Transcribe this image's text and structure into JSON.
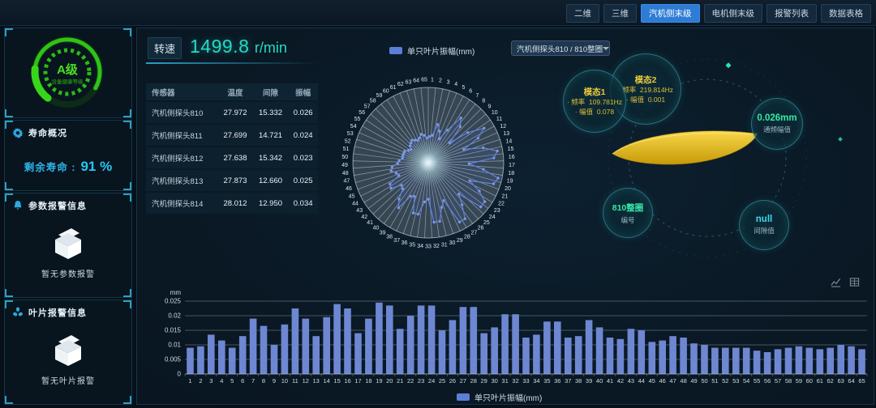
{
  "topbar": {
    "tabs": [
      {
        "label": "二维",
        "active": false
      },
      {
        "label": "三维",
        "active": false
      },
      {
        "label": "汽机侧末级",
        "active": true
      },
      {
        "label": "电机侧末级",
        "active": false
      },
      {
        "label": "报警列表",
        "active": false
      },
      {
        "label": "数据表格",
        "active": false
      }
    ]
  },
  "sidebar": {
    "health": {
      "grade": "A级",
      "caption": "设备健康等级"
    },
    "life": {
      "title": "寿命概况",
      "label": "剩余寿命 :",
      "value": "91 %"
    },
    "param_alarm": {
      "title": "参数报警信息",
      "empty": "暂无参数报警"
    },
    "blade_alarm": {
      "title": "叶片报警信息",
      "empty": "暂无叶片报警"
    }
  },
  "main": {
    "speed": {
      "label": "转速",
      "value": "1499.8",
      "unit": "r/min"
    },
    "selector": {
      "value": "汽机侧探头810 / 810整圈"
    },
    "polar_legend": "单只叶片振幅(mm)",
    "bottom_legend": "单只叶片振幅(mm)"
  },
  "table": {
    "headers": [
      "传感器",
      "温度",
      "间隙",
      "振幅"
    ],
    "rows": [
      [
        "汽机侧探头810",
        "27.972",
        "15.332",
        "0.026"
      ],
      [
        "汽机侧探头811",
        "27.699",
        "14.721",
        "0.024"
      ],
      [
        "汽机侧探头812",
        "27.638",
        "15.342",
        "0.023"
      ],
      [
        "汽机侧探头813",
        "27.873",
        "12.660",
        "0.025"
      ],
      [
        "汽机侧探头814",
        "28.012",
        "12.950",
        "0.034"
      ]
    ]
  },
  "blade_panel": {
    "mode1": {
      "title": "模态1",
      "freq_label": "· 频率",
      "freq": "109.781Hz",
      "amp_label": "· 幅值",
      "amp": "0.078"
    },
    "mode2": {
      "title": "模态2",
      "freq_label": "· 频率",
      "freq": "219.814Hz",
      "amp_label": "· 幅值",
      "amp": "0.001"
    },
    "amplitude": {
      "value": "0.026mm",
      "label": "通频幅值"
    },
    "ring": {
      "value": "810整圈",
      "label": "编号"
    },
    "gap": {
      "value": "null",
      "label": "间隙值"
    }
  },
  "chart_data": {
    "type": "bar",
    "title": "单只叶片振幅(mm)",
    "ylabel": "mm",
    "ylim": [
      0,
      0.025
    ],
    "yticks": [
      0,
      0.005,
      0.01,
      0.015,
      0.02,
      0.025
    ],
    "grid": true,
    "legend_position": "bottom",
    "views": [
      "bar",
      "polar-line"
    ],
    "bar_color": "#6e87d2",
    "line_color": "#6282dd",
    "categories": [
      1,
      2,
      3,
      4,
      5,
      6,
      7,
      8,
      9,
      10,
      11,
      12,
      13,
      14,
      15,
      16,
      17,
      18,
      19,
      20,
      21,
      22,
      23,
      24,
      25,
      26,
      27,
      28,
      29,
      30,
      31,
      32,
      33,
      34,
      35,
      36,
      37,
      38,
      39,
      40,
      41,
      42,
      43,
      44,
      45,
      46,
      47,
      48,
      49,
      50,
      51,
      52,
      53,
      54,
      55,
      56,
      57,
      58,
      59,
      60,
      61,
      62,
      63,
      64,
      65
    ],
    "values": [
      0.009,
      0.0095,
      0.0135,
      0.0115,
      0.009,
      0.013,
      0.019,
      0.0165,
      0.01,
      0.017,
      0.0225,
      0.019,
      0.013,
      0.0195,
      0.024,
      0.0225,
      0.014,
      0.019,
      0.0245,
      0.0235,
      0.0155,
      0.02,
      0.0235,
      0.0235,
      0.015,
      0.0185,
      0.023,
      0.023,
      0.014,
      0.016,
      0.0205,
      0.0205,
      0.0125,
      0.0135,
      0.018,
      0.018,
      0.0125,
      0.013,
      0.0185,
      0.016,
      0.0125,
      0.012,
      0.0155,
      0.015,
      0.011,
      0.0115,
      0.013,
      0.0125,
      0.0105,
      0.01,
      0.009,
      0.009,
      0.009,
      0.009,
      0.008,
      0.0075,
      0.0085,
      0.009,
      0.0095,
      0.009,
      0.0085,
      0.009,
      0.01,
      0.0095,
      0.0085
    ]
  },
  "icons": {
    "life_section": "gear-icon",
    "param_alarm_section": "bell-icon",
    "blade_alarm_section": "fan-icon",
    "empty_state": "empty-box-icon",
    "selector": "chevron-down-icon",
    "chart_toolbox": [
      "line-chart-icon",
      "data-view-icon"
    ]
  },
  "colors": {
    "accent_cyan": "#22dcc6",
    "health_green": "#3bd418",
    "bar_blue": "#6e87d2",
    "mode_yellow": "#eac73c",
    "value_green": "#37e8a6",
    "active_tab_blue": "#2d7cd6"
  }
}
